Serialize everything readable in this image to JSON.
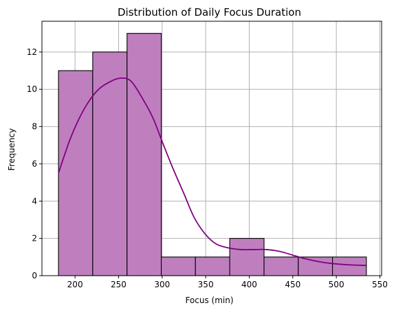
{
  "chart_data": {
    "type": "bar",
    "title": "Distribution of Daily Focus Duration",
    "xlabel": "Focus (min)",
    "ylabel": "Frequency",
    "xlim": [
      162,
      552
    ],
    "ylim": [
      0,
      13.65
    ],
    "xticks": [
      200,
      250,
      300,
      350,
      400,
      450,
      500,
      550
    ],
    "yticks": [
      0,
      2,
      4,
      6,
      8,
      10,
      12
    ],
    "grid": true,
    "bar_color": "#bf7fbf",
    "kde_color": "#800080",
    "bins": [
      {
        "x0": 181,
        "x1": 220.3,
        "count": 11
      },
      {
        "x0": 220.3,
        "x1": 259.7,
        "count": 12
      },
      {
        "x0": 259.7,
        "x1": 299,
        "count": 13
      },
      {
        "x0": 299,
        "x1": 338.2,
        "count": 1
      },
      {
        "x0": 338.2,
        "x1": 377.6,
        "count": 1
      },
      {
        "x0": 377.6,
        "x1": 417,
        "count": 2
      },
      {
        "x0": 417,
        "x1": 456.3,
        "count": 1
      },
      {
        "x0": 456.3,
        "x1": 495.6,
        "count": 1
      },
      {
        "x0": 495.6,
        "x1": 534.5,
        "count": 1
      }
    ],
    "kde": [
      [
        181,
        5.5
      ],
      [
        195,
        7.4
      ],
      [
        210,
        8.9
      ],
      [
        225,
        9.9
      ],
      [
        240,
        10.4
      ],
      [
        253,
        10.6
      ],
      [
        265,
        10.4
      ],
      [
        280,
        9.3
      ],
      [
        290,
        8.4
      ],
      [
        300,
        7.2
      ],
      [
        312,
        5.8
      ],
      [
        325,
        4.4
      ],
      [
        337,
        3.1
      ],
      [
        350,
        2.2
      ],
      [
        362,
        1.7
      ],
      [
        375,
        1.5
      ],
      [
        390,
        1.4
      ],
      [
        405,
        1.4
      ],
      [
        420,
        1.4
      ],
      [
        435,
        1.3
      ],
      [
        450,
        1.1
      ],
      [
        465,
        0.9
      ],
      [
        480,
        0.75
      ],
      [
        495,
        0.65
      ],
      [
        515,
        0.58
      ],
      [
        534,
        0.55
      ]
    ]
  }
}
